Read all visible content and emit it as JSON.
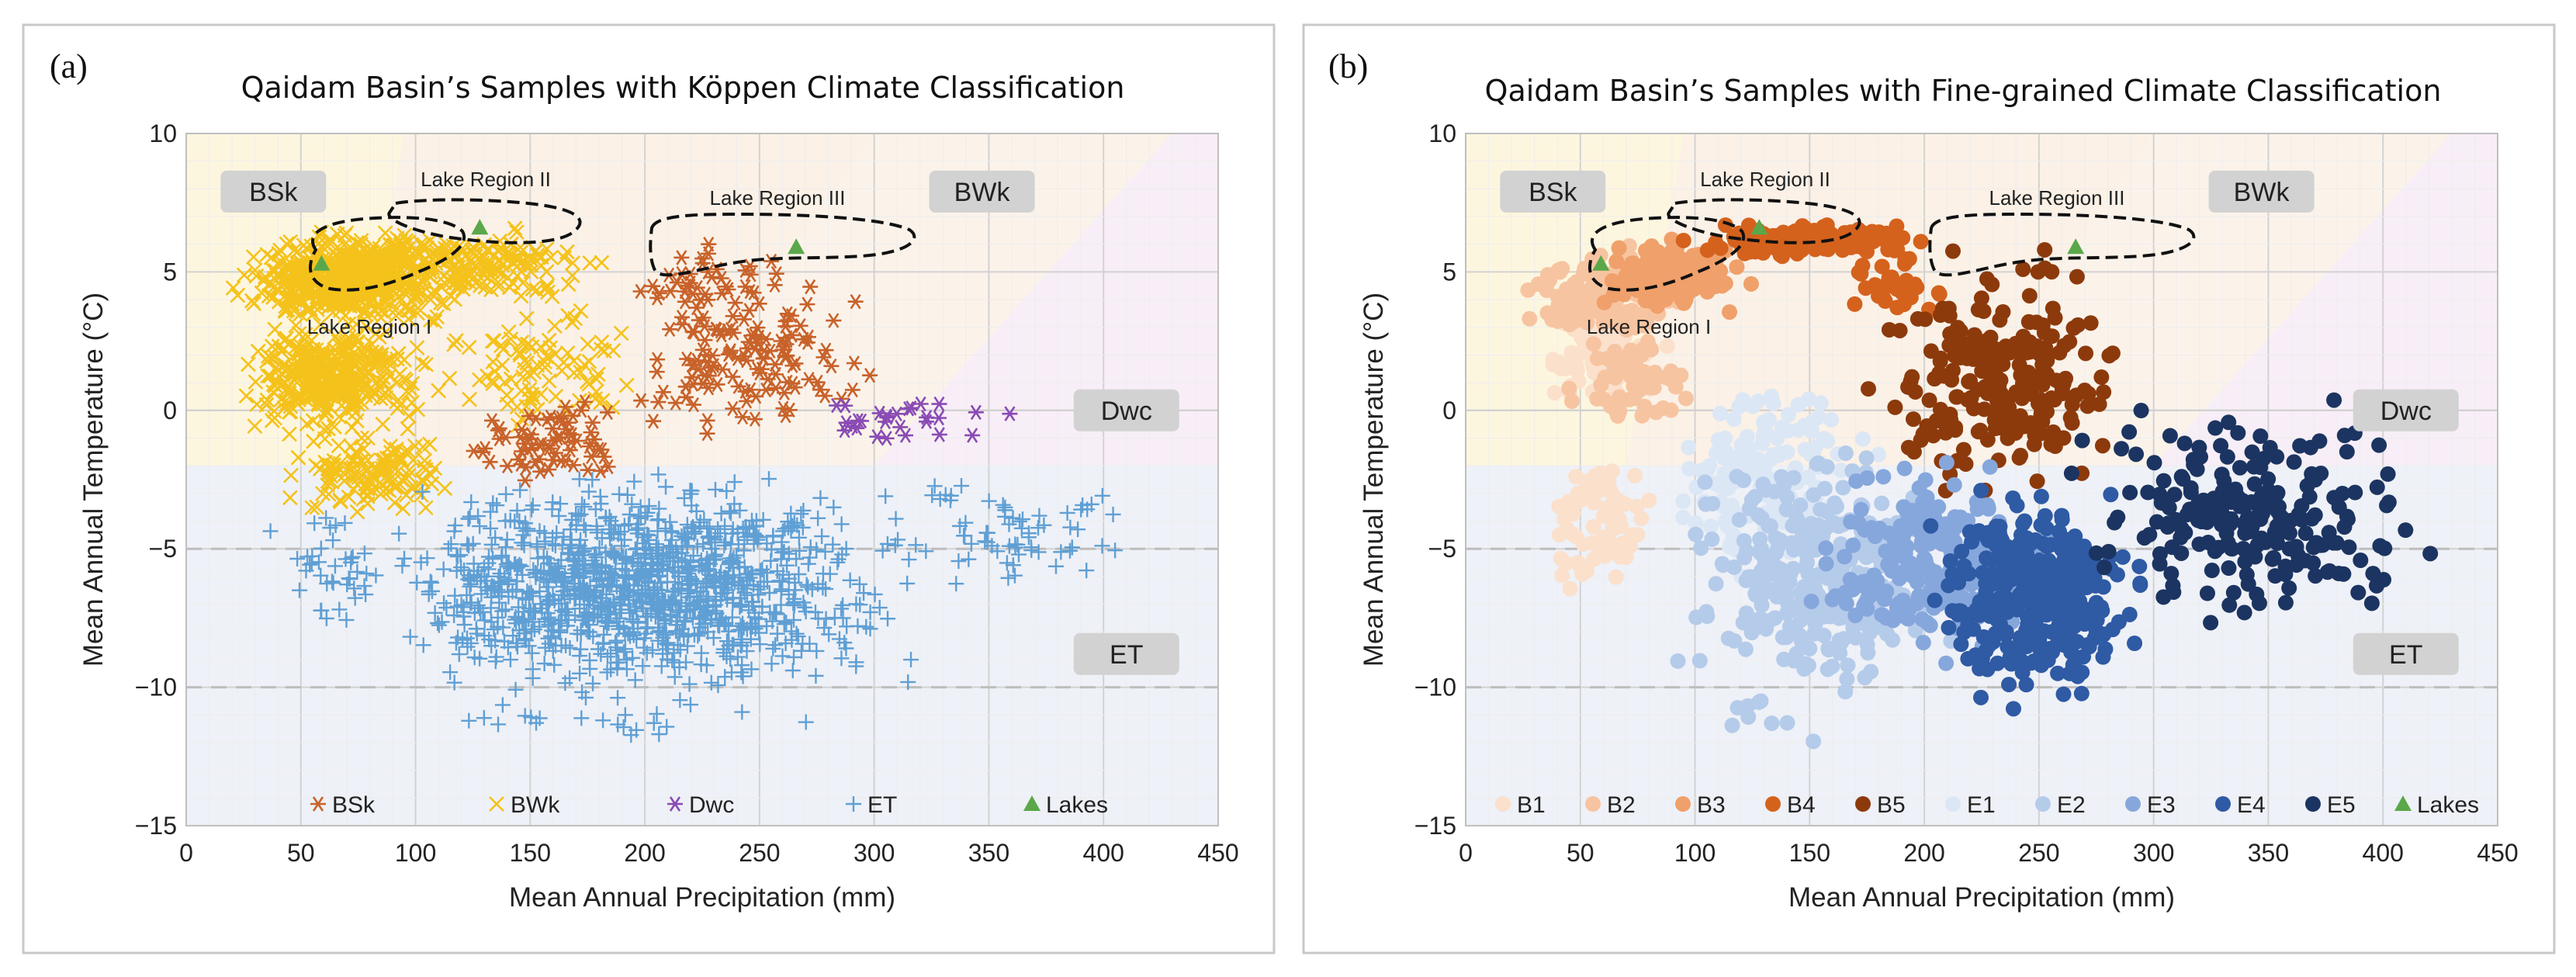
{
  "chart_data": [
    {
      "panel_label": "(a)",
      "type": "scatter",
      "title": "Qaidam Basin’s Samples with Köppen Climate Classification",
      "xlabel": "Mean Annual Precipitation (mm)",
      "ylabel": "Mean Annual Temperature (°C)",
      "xlim": [
        0,
        450
      ],
      "ylim": [
        -15,
        10
      ],
      "xticks": [
        "0",
        "50",
        "100",
        "150",
        "200",
        "250",
        "300",
        "350",
        "400",
        "450"
      ],
      "yticks": [
        "10",
        "5",
        "0",
        "−5",
        "−10",
        "−15"
      ],
      "zones": [
        {
          "name": "BSk",
          "x": 38,
          "y": 7.9
        },
        {
          "name": "BWk",
          "x": 347,
          "y": 7.9
        },
        {
          "name": "Dwc",
          "x": 410,
          "y": 0
        },
        {
          "name": "ET",
          "x": 410,
          "y": -8.8
        }
      ],
      "lake_regions": [
        {
          "name": "Lake Region I",
          "label_x": 78,
          "label_y": 2.9
        },
        {
          "name": "Lake Region II",
          "label_x": 135,
          "label_y": 8.3
        },
        {
          "name": "Lake Region III",
          "label_x": 259,
          "label_y": 7.6
        }
      ],
      "lakes": [
        [
          59,
          5.3
        ],
        [
          128,
          6.6
        ],
        [
          266,
          5.9
        ]
      ],
      "legend": [
        {
          "name": "BSk",
          "color": "#c8622a",
          "marker": "asterisk"
        },
        {
          "name": "BWk",
          "color": "#f4c21a",
          "marker": "cross"
        },
        {
          "name": "Dwc",
          "color": "#8a4bb4",
          "marker": "asterisk"
        },
        {
          "name": "ET",
          "color": "#5f9fd4",
          "marker": "plus"
        },
        {
          "name": "Lakes",
          "color": "#5aa84a",
          "marker": "triangle"
        }
      ],
      "series": [
        {
          "name": "BWk",
          "color": "#f4c21a",
          "marker": "cross",
          "clusters": [
            {
              "x": [
                18,
                125
              ],
              "y": [
                3,
                6.6
              ],
              "n": 520
            },
            {
              "x": [
                22,
                105
              ],
              "y": [
                -1,
                3.5
              ],
              "n": 380
            },
            {
              "x": [
                60,
                190
              ],
              "y": [
                4,
                6.6
              ],
              "n": 180
            },
            {
              "x": [
                40,
                120
              ],
              "y": [
                -4,
                -0.5
              ],
              "n": 130
            },
            {
              "x": [
                110,
                200
              ],
              "y": [
                -1,
                4.5
              ],
              "n": 90
            }
          ]
        },
        {
          "name": "BSk",
          "color": "#c8622a",
          "marker": "asterisk",
          "clusters": [
            {
              "x": [
                185,
                300
              ],
              "y": [
                -1.5,
                6
              ],
              "n": 140
            },
            {
              "x": [
                115,
                205
              ],
              "y": [
                -3,
                0.8
              ],
              "n": 70
            },
            {
              "x": [
                195,
                250
              ],
              "y": [
                3,
                6
              ],
              "n": 30
            }
          ]
        },
        {
          "name": "Dwc",
          "color": "#8a4bb4",
          "marker": "asterisk",
          "clusters": [
            {
              "x": [
                260,
                370
              ],
              "y": [
                -1.8,
                1
              ],
              "n": 28
            }
          ]
        },
        {
          "name": "ET",
          "color": "#5f9fd4",
          "marker": "plus",
          "clusters": [
            {
              "x": [
                80,
                320
              ],
              "y": [
                -10.5,
                -2.2
              ],
              "n": 1200
            },
            {
              "x": [
                30,
                90
              ],
              "y": [
                -8,
                -3
              ],
              "n": 40
            },
            {
              "x": [
                290,
                425
              ],
              "y": [
                -6.5,
                -2.2
              ],
              "n": 70
            },
            {
              "x": [
                100,
                280
              ],
              "y": [
                -12.4,
                -10
              ],
              "n": 25
            }
          ]
        }
      ]
    },
    {
      "panel_label": "(b)",
      "type": "scatter",
      "title": "Qaidam Basin’s Samples with Fine-grained Climate Classification",
      "xlabel": "Mean Annual Precipitation (mm)",
      "ylabel": "Mean Annual Temperature (°C)",
      "xlim": [
        0,
        450
      ],
      "ylim": [
        -15,
        10
      ],
      "xticks": [
        "0",
        "50",
        "100",
        "150",
        "200",
        "250",
        "300",
        "350",
        "400",
        "450"
      ],
      "yticks": [
        "10",
        "5",
        "0",
        "−5",
        "−10",
        "−15"
      ],
      "zones": [
        {
          "name": "BSk",
          "x": 38,
          "y": 7.9
        },
        {
          "name": "BWk",
          "x": 347,
          "y": 7.9
        },
        {
          "name": "Dwc",
          "x": 410,
          "y": 0
        },
        {
          "name": "ET",
          "x": 410,
          "y": -8.8
        }
      ],
      "lake_regions": [
        {
          "name": "Lake Region I",
          "label_x": 78,
          "label_y": 2.9
        },
        {
          "name": "Lake Region II",
          "label_x": 135,
          "label_y": 8.3
        },
        {
          "name": "Lake Region III",
          "label_x": 259,
          "label_y": 7.6
        }
      ],
      "lakes": [
        [
          59,
          5.3
        ],
        [
          128,
          6.6
        ],
        [
          266,
          5.9
        ]
      ],
      "legend": [
        {
          "name": "B1",
          "color": "#fbe0cc",
          "marker": "dot"
        },
        {
          "name": "B2",
          "color": "#f7c4a1",
          "marker": "dot"
        },
        {
          "name": "B3",
          "color": "#f0a06a",
          "marker": "dot"
        },
        {
          "name": "B4",
          "color": "#d4621d",
          "marker": "dot"
        },
        {
          "name": "B5",
          "color": "#8c3a0c",
          "marker": "dot"
        },
        {
          "name": "E1",
          "color": "#dce7f5",
          "marker": "dot"
        },
        {
          "name": "E2",
          "color": "#b5cbea",
          "marker": "dot"
        },
        {
          "name": "E3",
          "color": "#86a7dc",
          "marker": "dot"
        },
        {
          "name": "E4",
          "color": "#2f5aa4",
          "marker": "dot"
        },
        {
          "name": "E5",
          "color": "#1c3461",
          "marker": "dot"
        },
        {
          "name": "Lakes",
          "color": "#5aa84a",
          "marker": "triangle"
        }
      ],
      "series": [
        {
          "name": "B1",
          "color": "#fbe0cc",
          "marker": "dot",
          "clusters": [
            {
              "x": [
                25,
                90
              ],
              "y": [
                -7,
                -1
              ],
              "n": 70
            },
            {
              "x": [
                30,
                90
              ],
              "y": [
                0,
                4
              ],
              "n": 70
            }
          ]
        },
        {
          "name": "B2",
          "color": "#f7c4a1",
          "marker": "dot",
          "clusters": [
            {
              "x": [
                20,
                110
              ],
              "y": [
                2.5,
                6
              ],
              "n": 160
            },
            {
              "x": [
                40,
                110
              ],
              "y": [
                -1,
                3
              ],
              "n": 60
            }
          ]
        },
        {
          "name": "B3",
          "color": "#f0a06a",
          "marker": "dot",
          "clusters": [
            {
              "x": [
                55,
                125
              ],
              "y": [
                3.5,
                6.2
              ],
              "n": 140
            }
          ]
        },
        {
          "name": "B4",
          "color": "#d4621d",
          "marker": "dot",
          "clusters": [
            {
              "x": [
                95,
                205
              ],
              "y": [
                5.5,
                6.8
              ],
              "n": 150
            },
            {
              "x": [
                160,
                215
              ],
              "y": [
                3,
                5.8
              ],
              "n": 30
            }
          ]
        },
        {
          "name": "B5",
          "color": "#8c3a0c",
          "marker": "dot",
          "clusters": [
            {
              "x": [
                170,
                295
              ],
              "y": [
                -3.2,
                6
              ],
              "n": 230
            }
          ]
        },
        {
          "name": "E1",
          "color": "#dce7f5",
          "marker": "dot",
          "clusters": [
            {
              "x": [
                85,
                180
              ],
              "y": [
                -6.5,
                2
              ],
              "n": 160
            }
          ]
        },
        {
          "name": "E2",
          "color": "#b5cbea",
          "marker": "dot",
          "clusters": [
            {
              "x": [
                90,
                220
              ],
              "y": [
                -10.5,
                -1
              ],
              "n": 300
            },
            {
              "x": [
                100,
                160
              ],
              "y": [
                -12.5,
                -10
              ],
              "n": 8
            }
          ]
        },
        {
          "name": "E3",
          "color": "#86a7dc",
          "marker": "dot",
          "clusters": [
            {
              "x": [
                150,
                255
              ],
              "y": [
                -9.5,
                -1.5
              ],
              "n": 230
            }
          ]
        },
        {
          "name": "E4",
          "color": "#2f5aa4",
          "marker": "dot",
          "clusters": [
            {
              "x": [
                200,
                300
              ],
              "y": [
                -11,
                -2.5
              ],
              "n": 330
            }
          ]
        },
        {
          "name": "E5",
          "color": "#1c3461",
          "marker": "dot",
          "clusters": [
            {
              "x": [
                260,
                425
              ],
              "y": [
                -8.5,
                1
              ],
              "n": 220
            }
          ]
        }
      ]
    }
  ]
}
